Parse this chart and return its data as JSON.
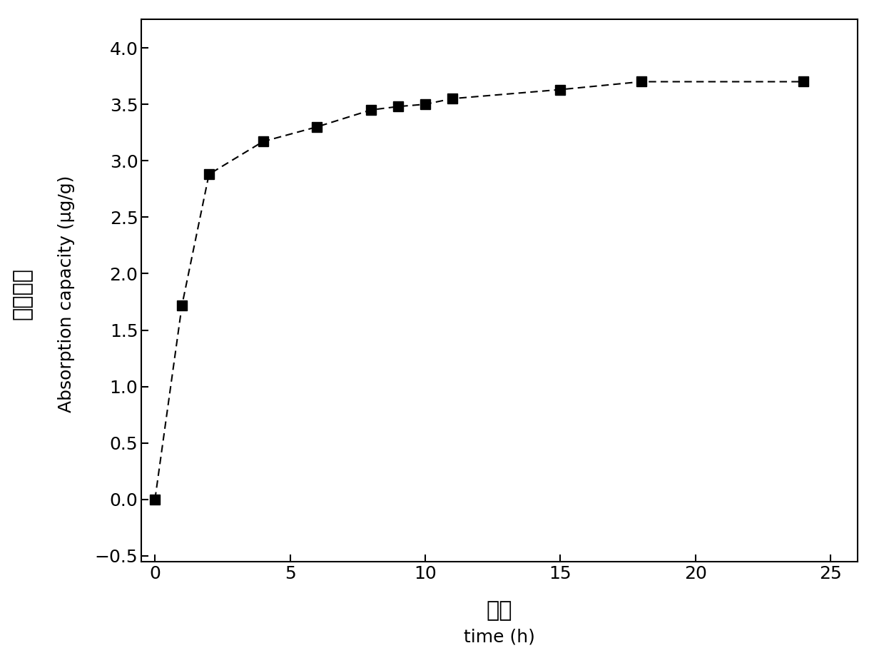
{
  "x": [
    0,
    1,
    2,
    4,
    6,
    8,
    9,
    10,
    11,
    15,
    18,
    24
  ],
  "y": [
    0.0,
    1.72,
    2.88,
    3.17,
    3.3,
    3.45,
    3.48,
    3.5,
    3.55,
    3.63,
    3.7,
    3.7
  ],
  "xlim": [
    -0.5,
    26
  ],
  "ylim": [
    -0.55,
    4.25
  ],
  "xticks": [
    0,
    5,
    10,
    15,
    20,
    25
  ],
  "yticks": [
    -0.5,
    0.0,
    0.5,
    1.0,
    1.5,
    2.0,
    2.5,
    3.0,
    3.5,
    4.0
  ],
  "xlabel_cn": "时间",
  "xlabel_en": "time (h)",
  "ylabel_cn": "吸附能力",
  "ylabel_en": "Absorption capacity (μg/g)",
  "marker": "s",
  "marker_size": 10,
  "marker_color": "#000000",
  "line_color": "#000000",
  "line_style": "--",
  "line_width": 1.5,
  "background_color": "#ffffff",
  "tick_fontsize": 18,
  "label_fontsize_cn": 22,
  "label_fontsize_en": 18
}
